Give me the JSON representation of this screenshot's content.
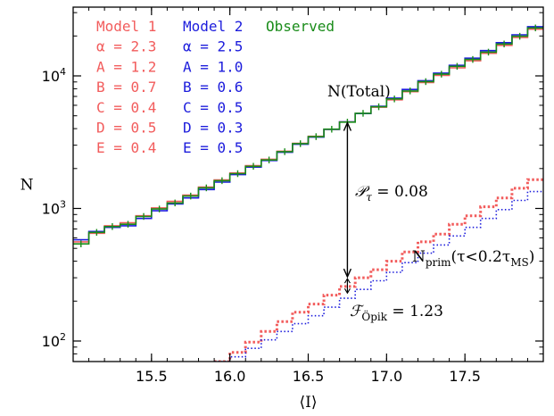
{
  "chart_data": {
    "type": "line",
    "xlabel": "⟨I⟩",
    "ylabel": "N",
    "xlim": [
      15.0,
      18.0
    ],
    "ylim": [
      70,
      33000
    ],
    "yscale": "log",
    "x_ticks": [
      "15.5",
      "16.0",
      "16.5",
      "17.0",
      "17.5"
    ],
    "y_ticks": [
      {
        "base": "10",
        "exp": "2",
        "value": 100
      },
      {
        "base": "10",
        "exp": "3",
        "value": 1000
      },
      {
        "base": "10",
        "exp": "4",
        "value": 10000
      }
    ],
    "bin_edges": [
      15.0,
      15.1,
      15.2,
      15.3,
      15.4,
      15.5,
      15.6,
      15.7,
      15.8,
      15.9,
      16.0,
      16.1,
      16.2,
      16.3,
      16.4,
      16.5,
      16.6,
      16.7,
      16.8,
      16.9,
      17.0,
      17.1,
      17.2,
      17.3,
      17.4,
      17.5,
      17.6,
      17.7,
      17.8,
      17.9,
      18.0
    ],
    "series": [
      {
        "name": "Model 1",
        "group": "total",
        "color": "#f25c5c",
        "style": "solid",
        "values": [
          560,
          650,
          740,
          780,
          880,
          1010,
          1130,
          1260,
          1450,
          1640,
          1850,
          2100,
          2350,
          2700,
          3100,
          3500,
          3950,
          4500,
          5200,
          5800,
          6600,
          7600,
          8900,
          10100,
          11500,
          13000,
          14800,
          17000,
          19500,
          22500
        ]
      },
      {
        "name": "Model 2",
        "group": "total",
        "color": "#1c1cdc",
        "style": "solid",
        "values": [
          580,
          670,
          720,
          740,
          840,
          960,
          1080,
          1200,
          1390,
          1580,
          1800,
          2050,
          2300,
          2650,
          3050,
          3450,
          3950,
          4500,
          5200,
          5900,
          6800,
          7900,
          9200,
          10500,
          12000,
          13600,
          15500,
          17800,
          20400,
          23500
        ]
      },
      {
        "name": "Observed",
        "group": "total",
        "color": "#1a8c1a",
        "style": "solid",
        "values": [
          540,
          660,
          730,
          760,
          870,
          990,
          1100,
          1240,
          1430,
          1620,
          1830,
          2080,
          2320,
          2680,
          3080,
          3480,
          3960,
          4480,
          5220,
          5850,
          6700,
          7700,
          9050,
          10300,
          11800,
          13300,
          15100,
          17400,
          19900,
          23000
        ]
      },
      {
        "name": "Model 1",
        "group": "primordial",
        "color": "#f25c5c",
        "style": "dotted",
        "values": [
          null,
          null,
          null,
          null,
          null,
          null,
          null,
          null,
          null,
          70,
          82,
          98,
          118,
          140,
          165,
          190,
          222,
          258,
          300,
          345,
          400,
          470,
          560,
          640,
          760,
          880,
          1030,
          1200,
          1420,
          1650
        ]
      },
      {
        "name": "Model 2",
        "group": "primordial",
        "color": "#1c1cdc",
        "style": "dotted",
        "values": [
          null,
          null,
          null,
          null,
          null,
          null,
          null,
          null,
          null,
          70,
          76,
          88,
          102,
          118,
          135,
          155,
          180,
          210,
          245,
          285,
          330,
          390,
          460,
          530,
          620,
          720,
          840,
          980,
          1150,
          1340
        ]
      }
    ],
    "legend": {
      "placement": "top-left",
      "columns": [
        {
          "title": "Model 1",
          "color": "#f25c5c",
          "rows": [
            "α = 2.3",
            "A = 1.2",
            "B = 0.7",
            "C = 0.4",
            "D = 0.5",
            "E = 0.4"
          ]
        },
        {
          "title": "Model 2",
          "color": "#1c1cdc",
          "rows": [
            "α = 2.5",
            "A = 1.0",
            "B = 0.6",
            "C = 0.5",
            "D = 0.3",
            "E = 0.5"
          ]
        },
        {
          "title": "Observed",
          "color": "#1a8c1a",
          "rows": []
        }
      ]
    },
    "annotations": {
      "total_label": "N(Total)",
      "p_tau": {
        "symbol": "𝒫",
        "sub": "τ",
        "text": " = 0.08"
      },
      "nprim": {
        "main": "N",
        "sub": "prim",
        "paren_open": "(τ<0.2τ",
        "paren_sub": "MS",
        "paren_close": ")"
      },
      "f_opik": {
        "symbol": "ℱ",
        "sub": "Öpik",
        "text": " = 1.23"
      },
      "arrow_x": 16.75,
      "arrow_top": 4500,
      "arrow_mid": 300,
      "arrow_bottom": 230
    }
  }
}
